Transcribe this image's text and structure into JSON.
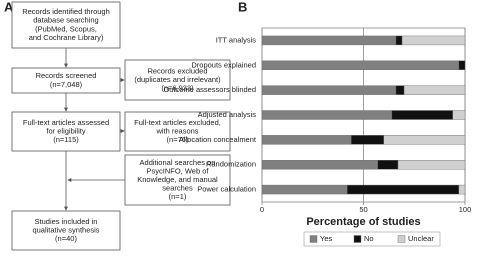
{
  "diagram": {
    "label": "A",
    "nodes": [
      {
        "lines": [
          "Records identified through",
          "database searching",
          "(PubMed, Scopus,",
          "and Cochrane Library)"
        ]
      },
      {
        "lines": [
          "Records screened",
          "(n=7,048)"
        ]
      },
      {
        "lines": [
          "Full-text articles assessed",
          "for eligibility",
          "(n=115)"
        ]
      },
      {
        "lines": [
          "Studies included in",
          "qualitative synthesis",
          "(n=40)"
        ]
      },
      {
        "lines": [
          "Records excluded",
          "(duplicates and irrelevant)",
          "(n=6,933)"
        ]
      },
      {
        "lines": [
          "Full-text articles excluded,",
          "with reasons",
          "(n=76)"
        ]
      },
      {
        "lines": [
          "Additional searches on",
          "PsycINFO, Web of",
          "Knowledge, and manual",
          "searches",
          "(n=1)"
        ]
      }
    ]
  },
  "chart_data": {
    "type": "stacked-barh",
    "label": "B",
    "categories": [
      "ITT analysis",
      "Dropouts explained",
      "Outcome assessors blinded",
      "Adjusted analysis",
      "Allocation concealment",
      "Randomization",
      "Power calculation"
    ],
    "series": [
      {
        "name": "Yes",
        "color": "#808080",
        "values": [
          66,
          97,
          66,
          64,
          44,
          57,
          42
        ]
      },
      {
        "name": "No",
        "color": "#111111",
        "values": [
          3,
          3,
          4,
          30,
          16,
          10,
          55
        ]
      },
      {
        "name": "Unclear",
        "color": "#d0d0d0",
        "values": [
          31,
          0,
          30,
          6,
          40,
          33,
          3
        ]
      }
    ],
    "xlabel": "Percentage of studies",
    "xlim": [
      0,
      100
    ],
    "xticks": [
      0,
      50,
      100
    ],
    "grid": true,
    "legend": "bottom"
  }
}
